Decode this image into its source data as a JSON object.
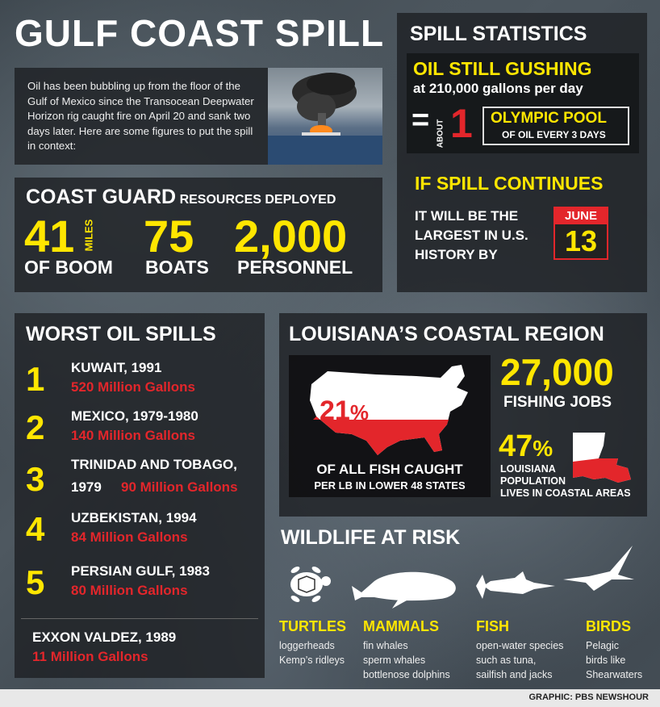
{
  "title": "GULF COAST SPILL",
  "intro": {
    "text": "Oil has been bubbling up from the floor of the Gulf of Mexico since the Transocean Deepwater Horizon rig caught fire on April 20 and sank two days later. Here are some figures to put the spill in context:"
  },
  "coast_guard": {
    "heading_big": "COAST GUARD",
    "heading_small": "RESOURCES DEPLOYED",
    "items": [
      {
        "value": "41",
        "unit": "MILES",
        "label": "OF BOOM"
      },
      {
        "value": "75",
        "label": "BOATS"
      },
      {
        "value": "2,000",
        "label": "PERSONNEL"
      }
    ]
  },
  "spill_stats": {
    "heading": "SPILL STATISTICS",
    "gushing_title": "OIL STILL GUSHING",
    "gushing_rate": "at 210,000 gallons per day",
    "equals": "=",
    "about": "ABOUT",
    "pool_count": "1",
    "pool_label": "OLYMPIC POOL",
    "pool_sub": "OF OIL EVERY 3 DAYS",
    "continues_title": "IF SPILL CONTINUES",
    "continues_text": [
      "IT WILL BE THE",
      "LARGEST IN U.S.",
      "HISTORY BY"
    ],
    "month": "JUNE",
    "day": "13"
  },
  "worst_spills": {
    "heading": "WORST OIL SPILLS",
    "items": [
      {
        "rank": "1",
        "name": "KUWAIT, 1991",
        "gallons": "520 Million Gallons"
      },
      {
        "rank": "2",
        "name": "MEXICO, 1979-1980",
        "gallons": "140 Million Gallons"
      },
      {
        "rank": "3",
        "name": "TRINIDAD AND TOBAGO,",
        "name2": "1979",
        "gallons": "90 Million Gallons"
      },
      {
        "rank": "4",
        "name": "UZBEKISTAN, 1994",
        "gallons": "84 Million Gallons"
      },
      {
        "rank": "5",
        "name": "PERSIAN GULF, 1983",
        "gallons": "80 Million Gallons"
      }
    ],
    "exxon_name": "EXXON VALDEZ, 1989",
    "exxon_gallons": "11 Million Gallons"
  },
  "louisiana": {
    "heading": "LOUISIANA’S COASTAL REGION",
    "fish_pct": "21",
    "pct_sign": "%",
    "fish_line1": "OF ALL FISH CAUGHT",
    "fish_line2": "PER LB IN LOWER 48 STATES",
    "jobs_value": "27,000",
    "jobs_label": "FISHING JOBS",
    "pop_pct": "47",
    "pop_lines": [
      "LOUISIANA",
      "POPULATION",
      "LIVES IN COASTAL AREAS"
    ]
  },
  "wildlife": {
    "heading": "WILDLIFE AT RISK",
    "groups": [
      {
        "name": "TURTLES",
        "icon": "turtle-icon",
        "lines": [
          "loggerheads",
          "Kemp’s ridleys"
        ]
      },
      {
        "name": "MAMMALS",
        "icon": "whale-icon",
        "lines": [
          "fin whales",
          "sperm whales",
          "bottlenose dolphins"
        ]
      },
      {
        "name": "FISH",
        "icon": "swordfish-icon",
        "lines": [
          "open-water species",
          "such as tuna,",
          "sailfish and jacks"
        ]
      },
      {
        "name": "BIRDS",
        "icon": "bird-icon",
        "lines": [
          "Pelagic",
          "birds like",
          "Shearwaters"
        ]
      }
    ]
  },
  "credit": "GRAPHIC: PBS NEWSHOUR",
  "colors": {
    "accent": "#ffe600",
    "alert": "#e3262b",
    "panel": "#1e2124"
  }
}
